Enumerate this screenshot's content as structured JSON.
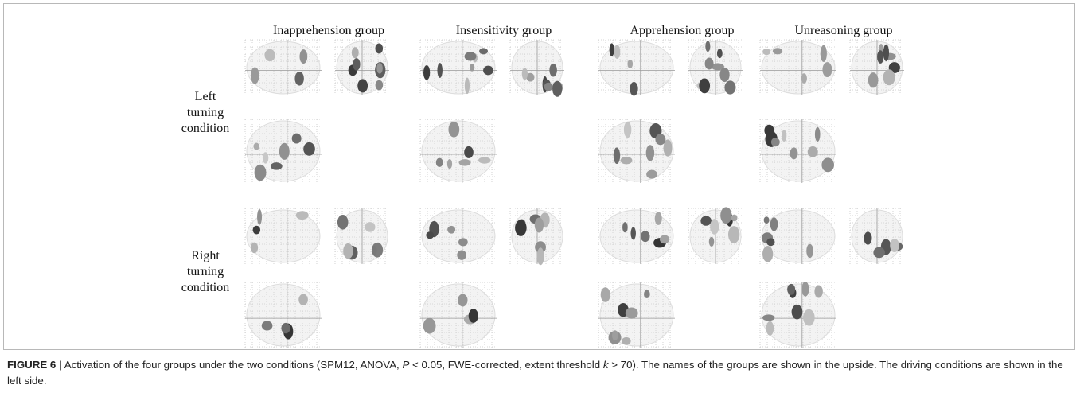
{
  "figure": {
    "groups": [
      "Inapprehension group",
      "Insensitivity group",
      "Apprehension group",
      "Unreasoning group"
    ],
    "conditions": [
      [
        "Left",
        "turning",
        "condition"
      ],
      [
        "Right",
        "turning",
        "condition"
      ]
    ],
    "caption": {
      "label": "FIGURE 6 |",
      "segments": [
        {
          "text": " Activation of the four groups under the two conditions (SPM12, ANOVA, ",
          "italic": false
        },
        {
          "text": "P",
          "italic": true
        },
        {
          "text": " < 0.05, FWE-corrected, extent threshold ",
          "italic": false
        },
        {
          "text": "k",
          "italic": true
        },
        {
          "text": " > 70). The names of the groups are shown in the upside. The driving conditions are shown in the left side.",
          "italic": false
        }
      ]
    }
  }
}
